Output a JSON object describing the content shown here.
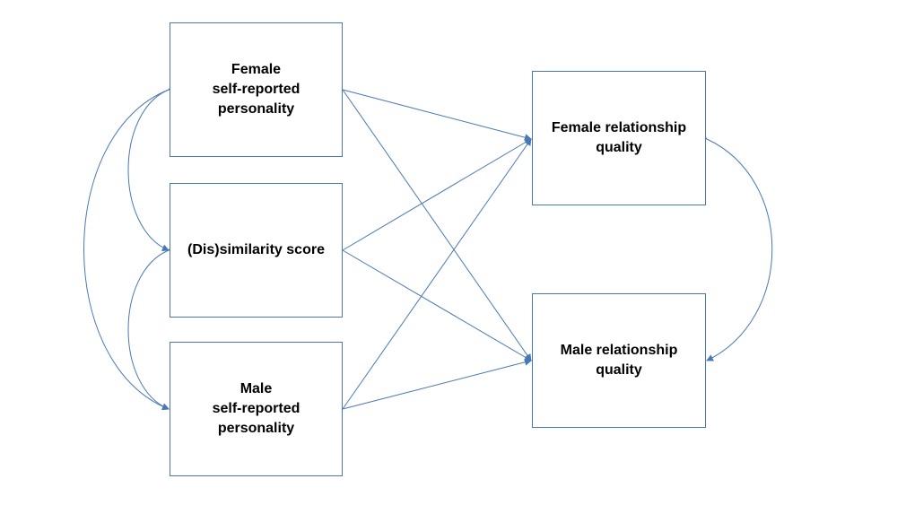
{
  "diagram": {
    "predictors": {
      "female_personality": "Female\nself-reported\npersonality",
      "dissimilarity": "(Dis)similarity score",
      "male_personality": "Male\nself-reported\npersonality"
    },
    "outcomes": {
      "female_quality": "Female relationship\nquality",
      "male_quality": "Male relationship\nquality"
    }
  },
  "colors": {
    "line": "#4a78b5",
    "border": "#4a78b5",
    "text": "#000000",
    "background": "#ffffff"
  }
}
